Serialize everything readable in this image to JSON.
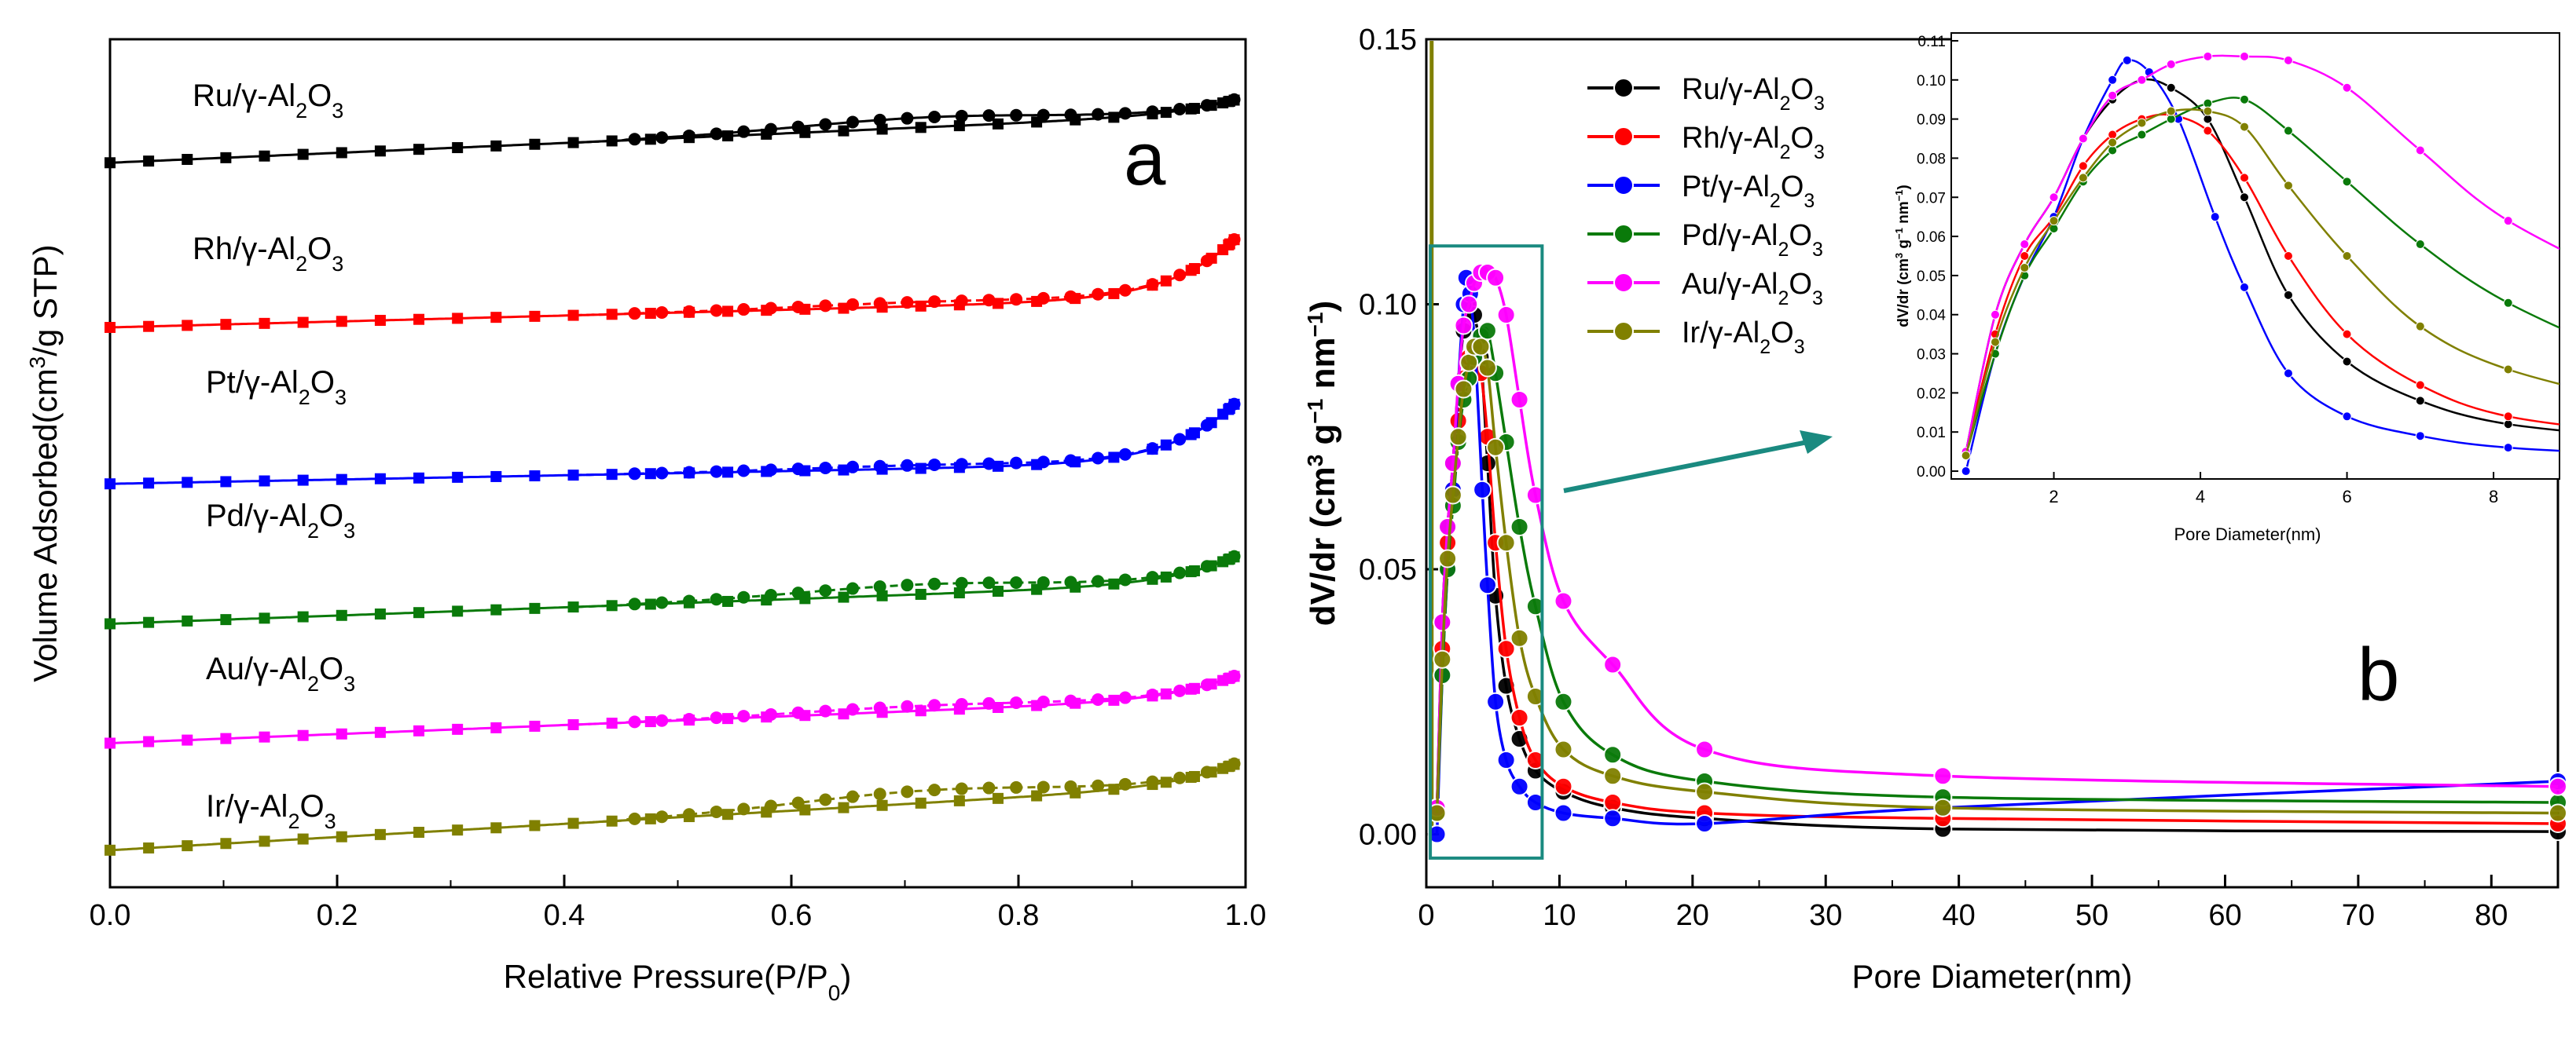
{
  "colors": {
    "Ru": "#000000",
    "Rh": "#ff0000",
    "Pt": "#0000ff",
    "Pd": "#0a7a0a",
    "Au": "#ff00ff",
    "Ir": "#808000",
    "highlight": "#1a8a80",
    "axis": "#000000"
  },
  "chart_data": [
    {
      "id": "a",
      "type": "line",
      "panel_label": "a",
      "xlabel": "Relative Pressure(P/P",
      "xlabel_sub": "0",
      "xlabel_tail": ")",
      "ylabel": "Volume Adsorbed(cm",
      "ylabel_sup": "3",
      "ylabel_tail": "/g STP)",
      "xlim": [
        0,
        1.0
      ],
      "xticks": [
        "0.0",
        "0.2",
        "0.4",
        "0.6",
        "0.8",
        "1.0"
      ],
      "yticks_shown": false,
      "series": [
        {
          "key": "Ru",
          "name": "Ru/γ-Al2O3",
          "label_main": "Ru/γ-Al",
          "label_mid": "O",
          "sub1": "2",
          "sub2": "3",
          "base": 85.0,
          "lin": 6.0,
          "hyst": 1.2,
          "tail": 2.0
        },
        {
          "key": "Rh",
          "name": "Rh/γ-Al2O3",
          "label_main": "Rh/γ-Al",
          "label_mid": "O",
          "sub1": "2",
          "sub2": "3",
          "base": 65.0,
          "lin": 3.6,
          "hyst": 0.5,
          "tail": 8.5
        },
        {
          "key": "Pt",
          "name": "Pt/γ-Al2O3",
          "label_main": "Pt/γ-Al",
          "label_mid": "O",
          "sub1": "2",
          "sub2": "3",
          "base": 46.0,
          "lin": 2.6,
          "hyst": 0.4,
          "tail": 8.5
        },
        {
          "key": "Pd",
          "name": "Pd/γ-Al2O3",
          "label_main": "Pd/γ-Al",
          "label_mid": "O",
          "sub1": "2",
          "sub2": "3",
          "base": 29.0,
          "lin": 5.0,
          "hyst": 1.2,
          "tail": 3.8
        },
        {
          "key": "Au",
          "name": "Au/γ-Al2O3",
          "label_main": "Au/γ-Al",
          "label_mid": "O",
          "sub1": "2",
          "sub2": "3",
          "base": 14.5,
          "lin": 5.5,
          "hyst": 0.6,
          "tail": 3.2
        },
        {
          "key": "Ir",
          "name": "Ir/γ-Al2O3",
          "label_main": "Ir/γ-Al",
          "label_mid": "O",
          "sub1": "2",
          "sub2": "3",
          "base": 1.5,
          "lin": 8.0,
          "hyst": 1.5,
          "tail": 3.0
        }
      ]
    },
    {
      "id": "b",
      "type": "line",
      "panel_label": "b",
      "xlabel": "Pore Diameter(nm)",
      "ylabel": "dV/dr (cm",
      "ylabel_sup1": "3",
      "ylabel_mid1": " g",
      "ylabel_sup2": "−1",
      "ylabel_mid2": " nm",
      "ylabel_sup3": "−1",
      "ylabel_tail": ")",
      "xlim": [
        0,
        85
      ],
      "ylim": [
        -0.01,
        0.15
      ],
      "xticks": [
        "0",
        "10",
        "20",
        "30",
        "40",
        "50",
        "60",
        "70",
        "80"
      ],
      "yticks": [
        "0.00",
        "0.05",
        "0.10",
        "0.15"
      ],
      "highlight_box_x": [
        0.3,
        8.7
      ],
      "highlight_box_y": [
        -0.0045,
        0.111
      ],
      "series": [
        {
          "key": "Ru",
          "name": "Ru/γ-Al2O3",
          "label_main": "Ru/γ-Al",
          "label_mid": "O",
          "sub1": "2",
          "sub2": "3",
          "x": [
            0.8,
            1.2,
            1.6,
            2.0,
            2.4,
            2.8,
            3.2,
            3.6,
            4.1,
            4.6,
            5.2,
            6.0,
            7.0,
            8.2,
            10.3,
            14.0,
            20.9,
            38.8,
            85.0
          ],
          "y": [
            0.005,
            0.04,
            0.058,
            0.07,
            0.085,
            0.095,
            0.1,
            0.098,
            0.09,
            0.07,
            0.045,
            0.028,
            0.018,
            0.012,
            0.008,
            0.005,
            0.003,
            0.001,
            0.0005
          ]
        },
        {
          "key": "Rh",
          "name": "Rh/γ-Al2O3",
          "label_main": "Rh/γ-Al",
          "label_mid": "O",
          "sub1": "2",
          "sub2": "3",
          "x": [
            0.8,
            1.2,
            1.6,
            2.0,
            2.4,
            2.8,
            3.2,
            3.6,
            4.1,
            4.6,
            5.2,
            6.0,
            7.0,
            8.2,
            10.3,
            14.0,
            20.9,
            38.8,
            85.0
          ],
          "y": [
            0.005,
            0.035,
            0.055,
            0.065,
            0.078,
            0.086,
            0.09,
            0.091,
            0.087,
            0.075,
            0.055,
            0.035,
            0.022,
            0.014,
            0.009,
            0.006,
            0.004,
            0.003,
            0.002
          ]
        },
        {
          "key": "Pt",
          "name": "Pt/γ-Al2O3",
          "label_main": "Pt/γ-Al",
          "label_mid": "O",
          "sub1": "2",
          "sub2": "3",
          "x": [
            0.8,
            1.2,
            1.6,
            2.0,
            2.4,
            2.8,
            3.0,
            3.3,
            3.7,
            4.2,
            4.6,
            5.2,
            6.0,
            7.0,
            8.2,
            10.3,
            14.0,
            20.9,
            38.8,
            85.0
          ],
          "y": [
            0.0,
            0.03,
            0.05,
            0.065,
            0.085,
            0.1,
            0.105,
            0.102,
            0.09,
            0.065,
            0.047,
            0.025,
            0.014,
            0.009,
            0.006,
            0.004,
            0.003,
            0.002,
            0.005,
            0.01
          ]
        },
        {
          "key": "Pd",
          "name": "Pd/γ-Al2O3",
          "label_main": "Pd/γ-Al",
          "label_mid": "O",
          "sub1": "2",
          "sub2": "3",
          "x": [
            0.8,
            1.2,
            1.6,
            2.0,
            2.4,
            2.8,
            3.2,
            3.6,
            4.1,
            4.6,
            5.2,
            6.0,
            7.0,
            8.2,
            10.3,
            14.0,
            20.9,
            38.8,
            85.0
          ],
          "y": [
            0.004,
            0.03,
            0.05,
            0.062,
            0.074,
            0.082,
            0.086,
            0.09,
            0.094,
            0.095,
            0.087,
            0.074,
            0.058,
            0.043,
            0.025,
            0.015,
            0.01,
            0.007,
            0.006
          ]
        },
        {
          "key": "Au",
          "name": "Au/γ-Al2O3",
          "label_main": "Au/γ-Al",
          "label_mid": "O",
          "sub1": "2",
          "sub2": "3",
          "x": [
            0.8,
            1.2,
            1.6,
            2.0,
            2.4,
            2.8,
            3.2,
            3.6,
            4.1,
            4.6,
            5.2,
            6.0,
            7.0,
            8.2,
            10.3,
            14.0,
            20.9,
            38.8,
            85.0
          ],
          "y": [
            0.005,
            0.04,
            0.058,
            0.07,
            0.085,
            0.096,
            0.1,
            0.104,
            0.106,
            0.106,
            0.105,
            0.098,
            0.082,
            0.064,
            0.044,
            0.032,
            0.016,
            0.011,
            0.009
          ]
        },
        {
          "key": "Ir",
          "name": "Ir/γ-Al2O3",
          "label_main": "Ir/γ-Al",
          "label_mid": "O",
          "sub1": "2",
          "sub2": "3",
          "x": [
            0.8,
            1.2,
            1.6,
            2.0,
            2.4,
            2.8,
            3.2,
            3.6,
            4.1,
            4.6,
            5.2,
            6.0,
            7.0,
            8.2,
            10.3,
            14.0,
            20.9,
            38.8,
            85.0
          ],
          "y": [
            0.004,
            0.033,
            0.052,
            0.064,
            0.075,
            0.084,
            0.089,
            0.092,
            0.092,
            0.088,
            0.073,
            0.055,
            0.037,
            0.026,
            0.016,
            0.011,
            0.008,
            0.005,
            0.004
          ]
        }
      ]
    },
    {
      "id": "b-inset",
      "type": "line",
      "xlabel": "Pore Diameter(nm)",
      "ylabel": "dV/dr (cm",
      "ylabel_sup1": "3",
      "ylabel_mid1": " g",
      "ylabel_sup2": "−1",
      "ylabel_mid2": " nm",
      "ylabel_sup3": "−1",
      "ylabel_tail": ")",
      "xlim": [
        0.6,
        8.9
      ],
      "ylim": [
        -0.002,
        0.112
      ],
      "xticks": [
        "2",
        "4",
        "6",
        "8"
      ],
      "yticks": [
        "0.00",
        "0.01",
        "0.02",
        "0.03",
        "0.04",
        "0.05",
        "0.06",
        "0.07",
        "0.08",
        "0.09",
        "0.10",
        "0.11"
      ],
      "series_source": "same data as panel b, restricted to the x-range"
    }
  ]
}
